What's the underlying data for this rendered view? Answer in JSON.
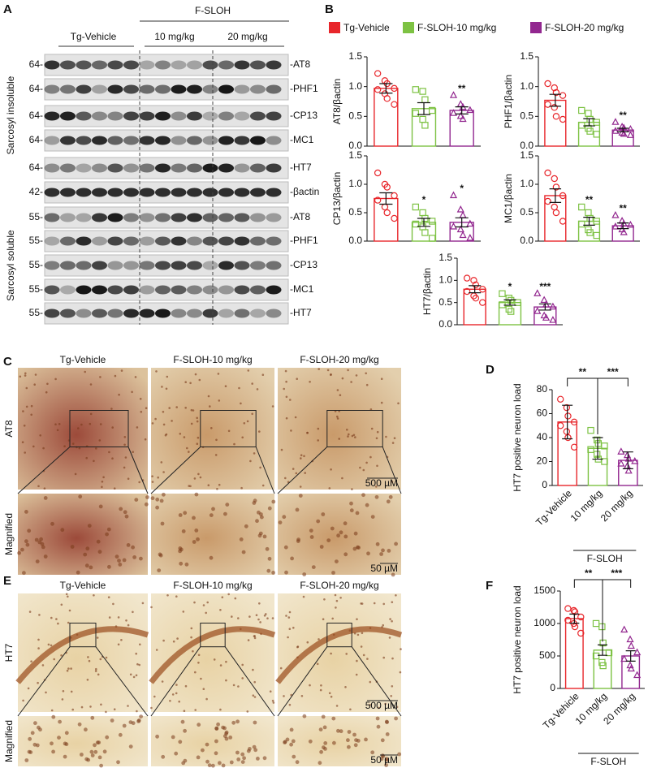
{
  "panel_labels": {
    "a": "A",
    "b": "B",
    "c": "C",
    "d": "D",
    "e": "E",
    "f": "F"
  },
  "blot": {
    "header_group": "F-SLOH",
    "header_columns": [
      "Tg-Vehicle",
      "10 mg/kg",
      "20 mg/kg"
    ],
    "fractions": [
      "Sarcosyl insoluble",
      "Sarcosyl soluble"
    ],
    "rows": [
      {
        "mw": "64-",
        "protein": "-AT8"
      },
      {
        "mw": "64-",
        "protein": "-PHF1"
      },
      {
        "mw": "64-",
        "protein": "-CP13"
      },
      {
        "mw": "64-",
        "protein": "-MC1"
      },
      {
        "mw": "64-",
        "protein": "-HT7"
      },
      {
        "mw": "42-",
        "protein": "-βactin"
      },
      {
        "mw": "55-",
        "protein": "-AT8"
      },
      {
        "mw": "55-",
        "protein": "-PHF1"
      },
      {
        "mw": "55-",
        "protein": "-CP13"
      },
      {
        "mw": "55-",
        "protein": "-MC1"
      },
      {
        "mw": "55-",
        "protein": "-HT7"
      }
    ]
  },
  "legend": {
    "names": [
      "Tg-Vehicle",
      "F-SLOH-10 mg/kg",
      "F-SLOH-20 mg/kg"
    ],
    "colors": [
      "#e8262b",
      "#7dc243",
      "#92278f"
    ]
  },
  "micrographs": [
    {
      "titles": [
        "Tg-Vehicle",
        "F-SLOH-10 mg/kg",
        "F-SLOH-20 mg/kg"
      ],
      "stain": "AT8",
      "magnified": "Magnified",
      "scale_main": "500 µM",
      "scale_zoom": "50 µM"
    },
    {
      "titles": [
        "Tg-Vehicle",
        "F-SLOH-10 mg/kg",
        "F-SLOH-20 mg/kg"
      ],
      "stain": "HT7",
      "magnified": "Magnified",
      "scale_main": "500 µM",
      "scale_zoom": "50 µM"
    }
  ],
  "chart_data": [
    {
      "type": "bar",
      "ylabel": "AT8/βactin",
      "values": [
        0.97,
        0.63,
        0.6
      ],
      "errors": [
        0.08,
        0.1,
        0.06
      ],
      "points": [
        [
          1.22,
          1.1,
          1.05,
          0.97,
          0.95,
          0.88,
          0.8,
          0.7
        ],
        [
          0.95,
          0.92,
          0.78,
          0.6,
          0.55,
          0.45,
          0.35
        ],
        [
          0.85,
          0.7,
          0.65,
          0.6,
          0.55,
          0.5,
          0.45
        ]
      ],
      "colors": [
        "#e8262b",
        "#7dc243",
        "#92278f"
      ],
      "markers": [
        "circle",
        "square",
        "triangle"
      ],
      "ylim": [
        0,
        1.5
      ],
      "yticks": [
        {
          "value": 0,
          "label": "0.0"
        },
        0.5,
        {
          "value": 1,
          "label": "1.0"
        },
        1.5
      ],
      "stars": [
        null,
        null,
        "**"
      ]
    },
    {
      "type": "bar",
      "ylabel": "PHF1/βactin",
      "values": [
        0.77,
        0.4,
        0.27
      ],
      "errors": [
        0.1,
        0.06,
        0.03
      ],
      "points": [
        [
          1.05,
          0.98,
          0.9,
          0.85,
          0.7,
          0.65,
          0.5,
          0.45
        ],
        [
          0.6,
          0.55,
          0.45,
          0.4,
          0.35,
          0.3,
          0.25,
          0.2
        ],
        [
          0.4,
          0.32,
          0.3,
          0.28,
          0.25,
          0.22,
          0.2,
          0.18
        ]
      ],
      "colors": [
        "#e8262b",
        "#7dc243",
        "#92278f"
      ],
      "markers": [
        "circle",
        "square",
        "triangle"
      ],
      "ylim": [
        0,
        1.5
      ],
      "yticks": [
        {
          "value": 0,
          "label": "0.0"
        },
        0.5,
        {
          "value": 1,
          "label": "1.0"
        },
        1.5
      ],
      "stars": [
        null,
        null,
        "**"
      ]
    },
    {
      "type": "bar",
      "ylabel": "CP13/βactin",
      "values": [
        0.75,
        0.33,
        0.33
      ],
      "errors": [
        0.1,
        0.07,
        0.08
      ],
      "points": [
        [
          1.2,
          1.0,
          0.95,
          0.8,
          0.72,
          0.6,
          0.5,
          0.4
        ],
        [
          0.6,
          0.5,
          0.4,
          0.35,
          0.3,
          0.25,
          0.15,
          0.05
        ],
        [
          0.8,
          0.55,
          0.45,
          0.3,
          0.25,
          0.2,
          0.1,
          0.05
        ]
      ],
      "colors": [
        "#e8262b",
        "#7dc243",
        "#92278f"
      ],
      "markers": [
        "circle",
        "square",
        "triangle"
      ],
      "ylim": [
        0,
        1.5
      ],
      "yticks": [
        {
          "value": 0,
          "label": "0.0"
        },
        0.5,
        {
          "value": 1,
          "label": "1.0"
        },
        1.5
      ],
      "stars": [
        null,
        "*",
        "*"
      ]
    },
    {
      "type": "bar",
      "ylabel": "MC1/βactin",
      "values": [
        0.8,
        0.35,
        0.27
      ],
      "errors": [
        0.12,
        0.07,
        0.05
      ],
      "points": [
        [
          1.2,
          1.1,
          0.95,
          0.8,
          0.7,
          0.6,
          0.5,
          0.35
        ],
        [
          0.6,
          0.5,
          0.4,
          0.35,
          0.3,
          0.2,
          0.15,
          0.1
        ],
        [
          0.45,
          0.35,
          0.3,
          0.28,
          0.25,
          0.2,
          0.15
        ]
      ],
      "colors": [
        "#e8262b",
        "#7dc243",
        "#92278f"
      ],
      "markers": [
        "circle",
        "square",
        "triangle"
      ],
      "ylim": [
        0,
        1.5
      ],
      "yticks": [
        {
          "value": 0,
          "label": "0.0"
        },
        0.5,
        {
          "value": 1,
          "label": "1.0"
        },
        1.5
      ],
      "stars": [
        null,
        "**",
        "**"
      ]
    },
    {
      "type": "bar",
      "ylabel": "HT7/βactin",
      "values": [
        0.8,
        0.5,
        0.4
      ],
      "errors": [
        0.08,
        0.06,
        0.07
      ],
      "points": [
        [
          1.05,
          1.0,
          0.9,
          0.8,
          0.75,
          0.65,
          0.6,
          0.5
        ],
        [
          0.7,
          0.6,
          0.55,
          0.5,
          0.45,
          0.35,
          0.3
        ],
        [
          0.7,
          0.55,
          0.45,
          0.4,
          0.3,
          0.2,
          0.15,
          0.1
        ]
      ],
      "colors": [
        "#e8262b",
        "#7dc243",
        "#92278f"
      ],
      "markers": [
        "circle",
        "square",
        "triangle"
      ],
      "ylim": [
        0,
        1.5
      ],
      "yticks": [
        {
          "value": 0,
          "label": "0.0"
        },
        0.5,
        {
          "value": 1,
          "label": "1.0"
        },
        1.5
      ],
      "stars": [
        null,
        "*",
        "***"
      ]
    },
    {
      "type": "bar",
      "ylabel": "HT7 positive neuron load",
      "categories": [
        "Tg-Vehicle",
        "10 mg/kg",
        "20 mg/kg"
      ],
      "group_label": "F-SLOH",
      "values": [
        53,
        31,
        21
      ],
      "errors": [
        14,
        9,
        7
      ],
      "points": [
        [
          72,
          65,
          58,
          53,
          50,
          45,
          40,
          32
        ],
        [
          46,
          38,
          35,
          33,
          30,
          26,
          22,
          20
        ],
        [
          28,
          25,
          22,
          20,
          18,
          16,
          12
        ]
      ],
      "colors": [
        "#e8262b",
        "#7dc243",
        "#92278f"
      ],
      "markers": [
        "circle",
        "square",
        "triangle"
      ],
      "ylim": [
        0,
        80
      ],
      "yticks": [
        0,
        20,
        40,
        60,
        80
      ],
      "comparisons": [
        "**",
        "***"
      ]
    },
    {
      "type": "bar",
      "ylabel": "HT7 positive neuron load",
      "categories": [
        "Tg-Vehicle",
        "10 mg/kg",
        "20 mg/kg"
      ],
      "group_label": "F-SLOH",
      "values": [
        1075,
        590,
        500
      ],
      "errors": [
        70,
        80,
        80
      ],
      "points": [
        [
          1230,
          1200,
          1180,
          1100,
          1050,
          1000,
          950,
          850
        ],
        [
          1000,
          950,
          700,
          550,
          500,
          400,
          350
        ],
        [
          900,
          750,
          650,
          550,
          450,
          350,
          300,
          200
        ]
      ],
      "colors": [
        "#e8262b",
        "#7dc243",
        "#92278f"
      ],
      "markers": [
        "circle",
        "square",
        "triangle"
      ],
      "ylim": [
        0,
        1500
      ],
      "yticks": [
        0,
        500,
        1000,
        1500
      ],
      "comparisons": [
        "**",
        "***"
      ]
    }
  ]
}
